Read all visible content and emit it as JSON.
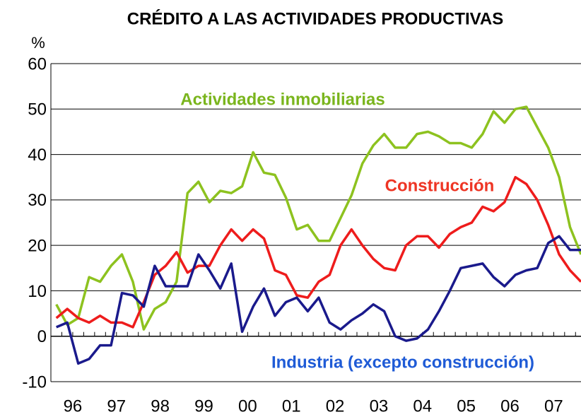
{
  "chart_data": {
    "type": "line",
    "title": "CRÉDITO A LAS ACTIVIDADES PRODUCTIVAS",
    "y_label": "%",
    "x": [
      1996.125,
      1996.375,
      1996.625,
      1996.875,
      1997.125,
      1997.375,
      1997.625,
      1997.875,
      1998.125,
      1998.375,
      1998.625,
      1998.875,
      1999.125,
      1999.375,
      1999.625,
      1999.875,
      2000.125,
      2000.375,
      2000.625,
      2000.875,
      2001.125,
      2001.375,
      2001.625,
      2001.875,
      2002.125,
      2002.375,
      2002.625,
      2002.875,
      2003.125,
      2003.375,
      2003.625,
      2003.875,
      2004.125,
      2004.375,
      2004.625,
      2004.875,
      2005.125,
      2005.375,
      2005.625,
      2005.875,
      2006.125,
      2006.375,
      2006.625,
      2006.875,
      2007.125,
      2007.375,
      2007.625,
      2007.875,
      2008.125
    ],
    "series": [
      {
        "name": "Actividades inmobiliarias",
        "color": "#8dc21f",
        "label_color": "#7ab51d",
        "values": [
          7,
          2.5,
          4,
          13,
          12,
          15.5,
          18,
          12,
          1.5,
          6,
          7.5,
          12,
          31.5,
          34,
          29.5,
          32,
          31.5,
          33,
          40.5,
          36,
          35.5,
          30.5,
          23.5,
          24.5,
          21,
          21,
          26,
          31,
          38,
          42,
          44.5,
          41.5,
          41.5,
          44.5,
          45,
          44,
          42.5,
          42.5,
          41.5,
          44.5,
          49.5,
          47,
          50,
          50.5,
          46,
          41.5,
          35,
          24,
          18
        ]
      },
      {
        "name": "Construcción",
        "color": "#ee1c1c",
        "label_color": "#ee3524",
        "values": [
          4,
          6,
          4,
          3,
          4.5,
          3,
          3,
          2,
          7.5,
          13.5,
          15.5,
          18.5,
          14,
          15.5,
          15.5,
          20,
          23.5,
          21,
          23.5,
          21.5,
          14.5,
          13.5,
          9,
          8.5,
          12,
          13.5,
          20,
          23.5,
          20,
          17,
          15,
          14.5,
          20,
          22,
          22,
          19.5,
          22.5,
          24,
          25,
          28.5,
          27.5,
          29.5,
          35,
          33.5,
          30,
          24.5,
          18,
          14.5,
          12
        ]
      },
      {
        "name": "Industria (excepto construcción)",
        "color": "#1a1a8c",
        "label_color": "#1f5bd6",
        "values": [
          2,
          3,
          -6,
          -5,
          -2,
          -2,
          9.5,
          9,
          6.5,
          15.5,
          11,
          11,
          11,
          18,
          14.5,
          10.5,
          16,
          1,
          6.5,
          10.5,
          4.5,
          7.5,
          8.5,
          5.5,
          8.5,
          3,
          1.5,
          3.5,
          5,
          7,
          5.5,
          0,
          -1,
          -0.5,
          1.5,
          5.5,
          10,
          15,
          15.5,
          16,
          13,
          11,
          13.5,
          14.5,
          15,
          20.5,
          22,
          19,
          19
        ]
      }
    ],
    "xlim": [
      1996,
      2008.125
    ],
    "xticks": [
      {
        "value": 1996.5,
        "label": "96"
      },
      {
        "value": 1997.5,
        "label": "97"
      },
      {
        "value": 1998.5,
        "label": "98"
      },
      {
        "value": 1999.5,
        "label": "99"
      },
      {
        "value": 2000.5,
        "label": "00"
      },
      {
        "value": 2001.5,
        "label": "01"
      },
      {
        "value": 2002.5,
        "label": "02"
      },
      {
        "value": 2003.5,
        "label": "03"
      },
      {
        "value": 2004.5,
        "label": "04"
      },
      {
        "value": 2005.5,
        "label": "05"
      },
      {
        "value": 2006.5,
        "label": "06"
      },
      {
        "value": 2007.5,
        "label": "07"
      }
    ],
    "ylim": [
      -10,
      60
    ],
    "yticks": [
      -10,
      0,
      10,
      20,
      30,
      40,
      50,
      60
    ],
    "grid": true
  }
}
